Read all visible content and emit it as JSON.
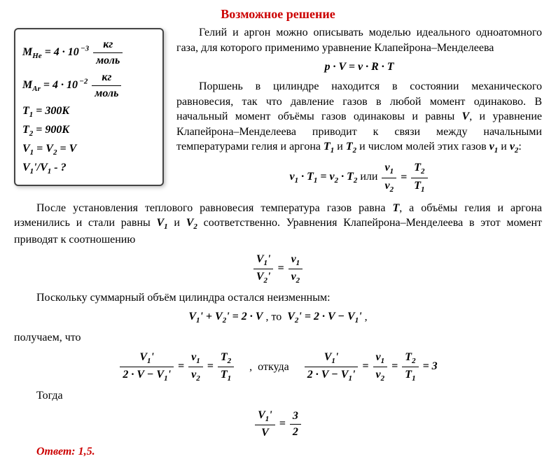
{
  "colors": {
    "accent": "#cc0000",
    "text": "#000000",
    "box_border": "#444444",
    "box_shadow": "rgba(0,0,0,0.25)",
    "background": "#ffffff"
  },
  "typography": {
    "font_family": "Times New Roman",
    "base_size_pt": 12,
    "title_size_pt": 14,
    "title_weight": "bold",
    "equation_style": "italic bold"
  },
  "title": "Возможное решение",
  "given": {
    "M_He_html": "M<sub>He</sub> = 4 · 10<sup> −3</sup> <span class='frac'><span class='num'>кг</span><span class='den'>моль</span></span>",
    "M_Ar_html": "M<sub>Ar</sub> = 4 · 10<sup> −2</sup> <span class='frac'><span class='num'>кг</span><span class='den'>моль</span></span>",
    "T1_html": "T<sub>1</sub> = 300K",
    "T2_html": "T<sub>2</sub> = 900K",
    "V_eq_html": "V<sub>1</sub> = V<sub>2</sub> = V",
    "find_html": "V<sub>1</sub>'/V<sub>1</sub> - ?"
  },
  "para": {
    "p1": "Гелий и аргон можно описывать моделью идеального одноатомного газа, для которого применимо уравнение Клапейрона–Менделеева",
    "p2_html": "Поршень в цилиндре находится в состоянии механического равновесия, так что давление газов в любой момент одинаково. В начальный момент объёмы газов одинаковы и равны <span class='bi'>V</span>, и уравнение Клапейрона–Менделеева приводит к связи между начальными температурами гелия и аргона <span class='bi'>T<sub>1</sub></span> и <span class='bi'>T<sub>2</sub></span> и числом молей этих газов <span class='bi'>ν<sub>1</sub></span> и <span class='bi'>ν<sub>2</sub></span>:",
    "p3_html": "После установления теплового равновесия температура газов равна <span class='bi'>T</span>, а объёмы гелия и аргона изменились и стали равны <span class='bi'>V<sub>1</sub></span> и <span class='bi'>V<sub>2</sub></span> соответственно. Уравнения Клапейрона–Менделеева в этот момент приводят к соотношению",
    "p4": "Поскольку суммарный объём цилиндра остался неизменным:",
    "p5": "получаем, что",
    "then": "Тогда",
    "or": "или",
    "so": ", то",
    "from": ",  откуда"
  },
  "equations": {
    "e1_html": "p · V = ν · R · T",
    "e2_left_html": "ν<sub>1</sub> · T<sub>1</sub> = ν<sub>2</sub> · T<sub>2</sub>",
    "e2_right_html": "<span class='frac'><span class='num'>ν<sub>1</sub></span><span class='den'>ν<sub>2</sub></span></span> = <span class='frac'><span class='num'>T<sub>2</sub></span><span class='den'>T<sub>1</sub></span></span>",
    "e3_html": "<span class='frac'><span class='num'>V<sub>1</sub>'</span><span class='den'>V<sub>2</sub>'</span></span> = <span class='frac'><span class='num'>ν<sub>1</sub></span><span class='den'>ν<sub>2</sub></span></span>",
    "e4_left_html": "V<sub>1</sub>' + V<sub>2</sub>' = 2 · V",
    "e4_right_html": "V<sub>2</sub>' = 2 · V − V<sub>1</sub>'",
    "e5_left_html": "<span class='frac'><span class='num'>V<sub>1</sub>'</span><span class='den'>2 · V − V<sub>1</sub>'</span></span> = <span class='frac'><span class='num'>ν<sub>1</sub></span><span class='den'>ν<sub>2</sub></span></span> = <span class='frac'><span class='num'>T<sub>2</sub></span><span class='den'>T<sub>1</sub></span></span>",
    "e5_right_html": "<span class='frac'><span class='num'>V<sub>1</sub>'</span><span class='den'>2 · V − V<sub>1</sub>'</span></span> = <span class='frac'><span class='num'>ν<sub>1</sub></span><span class='den'>ν<sub>2</sub></span></span> = <span class='frac'><span class='num'>T<sub>2</sub></span><span class='den'>T<sub>1</sub></span></span> = 3",
    "e6_html": "<span class='frac'><span class='num'>V<sub>1</sub>'</span><span class='den'>V</span></span> = <span class='frac'><span class='num'>3</span><span class='den'>2</span></span>"
  },
  "answer_label": "Ответ:",
  "answer_value": "1,5."
}
